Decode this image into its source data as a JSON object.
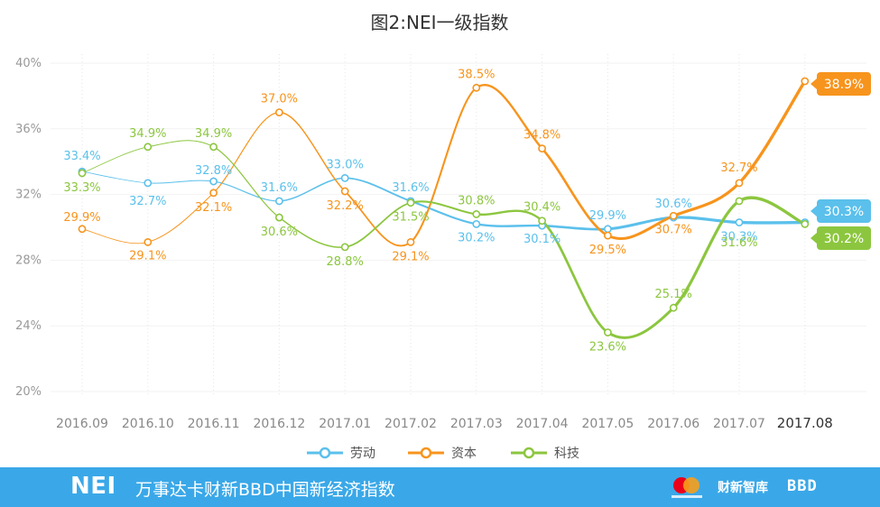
{
  "chart_data": {
    "type": "line",
    "title": "图2:NEI一级指数",
    "categories": [
      "2016.09",
      "2016.10",
      "2016.11",
      "2016.12",
      "2017.01",
      "2017.02",
      "2017.03",
      "2017.04",
      "2017.05",
      "2017.06",
      "2017.07",
      "2017.08"
    ],
    "y_ticks": [
      "20%",
      "24%",
      "28%",
      "32%",
      "36%",
      "40%"
    ],
    "ylim": [
      20,
      40
    ],
    "legend_position": "bottom",
    "series": [
      {
        "name": "劳动",
        "color": "#5bc0eb",
        "values": [
          33.4,
          32.7,
          32.8,
          31.6,
          33.0,
          31.6,
          30.2,
          30.1,
          29.9,
          30.6,
          30.3,
          30.3
        ],
        "labels": [
          "33.4%",
          "32.7%",
          "32.8%",
          "31.6%",
          "33.0%",
          "31.6%",
          "30.2%",
          "30.1%",
          "29.9%",
          "30.6%",
          "30.3%",
          "30.3%"
        ]
      },
      {
        "name": "资本",
        "color": "#f7941d",
        "values": [
          29.9,
          29.1,
          32.1,
          37.0,
          32.2,
          29.1,
          38.5,
          34.8,
          29.5,
          30.7,
          32.7,
          38.9
        ],
        "labels": [
          "29.9%",
          "29.1%",
          "32.1%",
          "37.0%",
          "32.2%",
          "29.1%",
          "38.5%",
          "34.8%",
          "29.5%",
          "30.7%",
          "32.7%",
          "38.9%"
        ]
      },
      {
        "name": "科技",
        "color": "#8cc63f",
        "values": [
          33.3,
          34.9,
          34.9,
          30.6,
          28.8,
          31.5,
          30.8,
          30.4,
          23.6,
          25.1,
          31.6,
          30.2
        ],
        "labels": [
          "33.3%",
          "34.9%",
          "34.9%",
          "30.6%",
          "28.8%",
          "31.5%",
          "30.8%",
          "30.4%",
          "23.6%",
          "25.1%",
          "31.6%",
          "30.2%"
        ]
      }
    ]
  },
  "footer": {
    "logo": "NEI",
    "name": "万事达卡财新BBD中国新经济指数",
    "brand_cx": "财新智库",
    "brand_bbd": "BBD"
  }
}
